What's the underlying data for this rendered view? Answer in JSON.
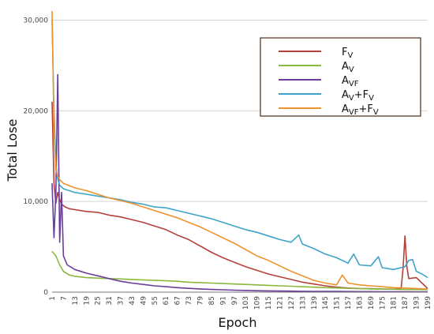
{
  "chart_data": {
    "type": "line",
    "xlabel": "Epoch",
    "ylabel": "Total Lose",
    "ylim": [
      0,
      31000
    ],
    "xlim": [
      1,
      199
    ],
    "grid": true,
    "legend_position": "top-right",
    "x_ticks": [
      1,
      7,
      13,
      19,
      25,
      31,
      37,
      43,
      49,
      55,
      61,
      67,
      73,
      79,
      85,
      91,
      97,
      103,
      109,
      115,
      121,
      127,
      133,
      139,
      145,
      151,
      157,
      163,
      169,
      175,
      181,
      187,
      193,
      199
    ],
    "y_ticks": [
      {
        "value": 0,
        "label": "0"
      },
      {
        "value": 10000,
        "label": "10,000"
      },
      {
        "value": 20000,
        "label": "20,000"
      },
      {
        "value": 30000,
        "label": "30,000"
      }
    ],
    "series": [
      {
        "name": "FV",
        "label_main": "F",
        "label_sub": "V",
        "label_main2": "",
        "label_sub2": "",
        "color": "#b5403a",
        "points": [
          [
            1,
            21000
          ],
          [
            2,
            12000
          ],
          [
            3,
            9800
          ],
          [
            4,
            11000
          ],
          [
            5,
            10200
          ],
          [
            6,
            9700
          ],
          [
            8,
            9400
          ],
          [
            10,
            9200
          ],
          [
            13,
            9100
          ],
          [
            19,
            8900
          ],
          [
            25,
            8800
          ],
          [
            31,
            8500
          ],
          [
            37,
            8300
          ],
          [
            43,
            8000
          ],
          [
            49,
            7700
          ],
          [
            55,
            7300
          ],
          [
            61,
            6900
          ],
          [
            67,
            6300
          ],
          [
            73,
            5800
          ],
          [
            79,
            5100
          ],
          [
            85,
            4400
          ],
          [
            91,
            3800
          ],
          [
            97,
            3300
          ],
          [
            103,
            2800
          ],
          [
            109,
            2400
          ],
          [
            115,
            2000
          ],
          [
            121,
            1700
          ],
          [
            127,
            1400
          ],
          [
            133,
            1100
          ],
          [
            139,
            900
          ],
          [
            145,
            700
          ],
          [
            151,
            550
          ],
          [
            157,
            450
          ],
          [
            163,
            400
          ],
          [
            169,
            380
          ],
          [
            175,
            350
          ],
          [
            181,
            330
          ],
          [
            185,
            400
          ],
          [
            186,
            2500
          ],
          [
            187,
            6200
          ],
          [
            188,
            2800
          ],
          [
            189,
            1500
          ],
          [
            193,
            1600
          ],
          [
            196,
            1000
          ],
          [
            199,
            400
          ]
        ]
      },
      {
        "name": "AV",
        "label_main": "A",
        "label_sub": "V",
        "label_main2": "",
        "label_sub2": "",
        "color": "#8ab83c",
        "points": [
          [
            1,
            4500
          ],
          [
            3,
            4000
          ],
          [
            5,
            3000
          ],
          [
            7,
            2300
          ],
          [
            10,
            1900
          ],
          [
            13,
            1750
          ],
          [
            19,
            1600
          ],
          [
            25,
            1550
          ],
          [
            31,
            1500
          ],
          [
            37,
            1450
          ],
          [
            43,
            1400
          ],
          [
            49,
            1350
          ],
          [
            55,
            1300
          ],
          [
            61,
            1250
          ],
          [
            67,
            1200
          ],
          [
            73,
            1100
          ],
          [
            79,
            1050
          ],
          [
            85,
            1000
          ],
          [
            91,
            950
          ],
          [
            97,
            900
          ],
          [
            103,
            850
          ],
          [
            109,
            800
          ],
          [
            115,
            750
          ],
          [
            121,
            700
          ],
          [
            127,
            650
          ],
          [
            133,
            600
          ],
          [
            139,
            550
          ],
          [
            145,
            500
          ],
          [
            151,
            460
          ],
          [
            157,
            420
          ],
          [
            163,
            390
          ],
          [
            169,
            360
          ],
          [
            175,
            340
          ],
          [
            181,
            320
          ],
          [
            187,
            300
          ],
          [
            193,
            290
          ],
          [
            199,
            280
          ]
        ]
      },
      {
        "name": "AVF",
        "label_main": "A",
        "label_sub": "VF",
        "label_main2": "",
        "label_sub2": "",
        "color": "#6a3d9a",
        "points": [
          [
            1,
            12000
          ],
          [
            2,
            6000
          ],
          [
            3,
            11000
          ],
          [
            4,
            24000
          ],
          [
            5,
            5500
          ],
          [
            6,
            11000
          ],
          [
            7,
            4000
          ],
          [
            9,
            3000
          ],
          [
            13,
            2500
          ],
          [
            19,
            2100
          ],
          [
            25,
            1800
          ],
          [
            31,
            1500
          ],
          [
            37,
            1200
          ],
          [
            43,
            1000
          ],
          [
            49,
            850
          ],
          [
            55,
            700
          ],
          [
            61,
            600
          ],
          [
            67,
            500
          ],
          [
            73,
            420
          ],
          [
            79,
            360
          ],
          [
            85,
            300
          ],
          [
            91,
            260
          ],
          [
            97,
            220
          ],
          [
            103,
            190
          ],
          [
            109,
            160
          ],
          [
            115,
            140
          ],
          [
            121,
            120
          ],
          [
            127,
            110
          ],
          [
            133,
            100
          ],
          [
            139,
            90
          ],
          [
            145,
            80
          ],
          [
            151,
            75
          ],
          [
            157,
            70
          ],
          [
            163,
            65
          ],
          [
            169,
            60
          ],
          [
            175,
            55
          ],
          [
            181,
            50
          ],
          [
            187,
            50
          ],
          [
            193,
            45
          ],
          [
            199,
            40
          ]
        ]
      },
      {
        "name": "AV+FV",
        "label_main": "A",
        "label_sub": "V",
        "label_main2": "+F",
        "label_sub2": "V",
        "color": "#3ea3c8",
        "points": [
          [
            1,
            30000
          ],
          [
            2,
            20000
          ],
          [
            3,
            14000
          ],
          [
            4,
            12500
          ],
          [
            5,
            11800
          ],
          [
            7,
            11400
          ],
          [
            13,
            11000
          ],
          [
            19,
            10800
          ],
          [
            25,
            10600
          ],
          [
            31,
            10400
          ],
          [
            37,
            10200
          ],
          [
            43,
            9900
          ],
          [
            49,
            9700
          ],
          [
            55,
            9400
          ],
          [
            61,
            9300
          ],
          [
            67,
            9000
          ],
          [
            73,
            8700
          ],
          [
            79,
            8400
          ],
          [
            85,
            8100
          ],
          [
            91,
            7700
          ],
          [
            97,
            7300
          ],
          [
            103,
            6900
          ],
          [
            109,
            6600
          ],
          [
            115,
            6200
          ],
          [
            121,
            5800
          ],
          [
            127,
            5500
          ],
          [
            131,
            6300
          ],
          [
            133,
            5300
          ],
          [
            139,
            4800
          ],
          [
            145,
            4200
          ],
          [
            151,
            3800
          ],
          [
            157,
            3200
          ],
          [
            160,
            4200
          ],
          [
            163,
            3000
          ],
          [
            169,
            2900
          ],
          [
            173,
            3900
          ],
          [
            175,
            2700
          ],
          [
            181,
            2500
          ],
          [
            187,
            2800
          ],
          [
            189,
            3500
          ],
          [
            191,
            3600
          ],
          [
            193,
            2300
          ],
          [
            196,
            2000
          ],
          [
            199,
            1600
          ]
        ]
      },
      {
        "name": "AVF+FV",
        "label_main": "A",
        "label_sub": "VF",
        "label_main2": "+F",
        "label_sub2": "V",
        "color": "#f0922c",
        "points": [
          [
            1,
            31000
          ],
          [
            2,
            18000
          ],
          [
            3,
            13500
          ],
          [
            4,
            12800
          ],
          [
            5,
            12400
          ],
          [
            7,
            12000
          ],
          [
            13,
            11500
          ],
          [
            19,
            11200
          ],
          [
            25,
            10800
          ],
          [
            31,
            10400
          ],
          [
            37,
            10100
          ],
          [
            43,
            9800
          ],
          [
            49,
            9400
          ],
          [
            55,
            9000
          ],
          [
            61,
            8600
          ],
          [
            67,
            8200
          ],
          [
            73,
            7700
          ],
          [
            79,
            7200
          ],
          [
            85,
            6600
          ],
          [
            91,
            6000
          ],
          [
            97,
            5400
          ],
          [
            103,
            4700
          ],
          [
            109,
            4000
          ],
          [
            115,
            3500
          ],
          [
            121,
            2900
          ],
          [
            127,
            2300
          ],
          [
            133,
            1800
          ],
          [
            139,
            1300
          ],
          [
            145,
            1000
          ],
          [
            151,
            800
          ],
          [
            154,
            1900
          ],
          [
            157,
            1000
          ],
          [
            163,
            800
          ],
          [
            169,
            700
          ],
          [
            175,
            600
          ],
          [
            181,
            500
          ],
          [
            187,
            450
          ],
          [
            193,
            400
          ],
          [
            199,
            350
          ]
        ]
      }
    ]
  }
}
